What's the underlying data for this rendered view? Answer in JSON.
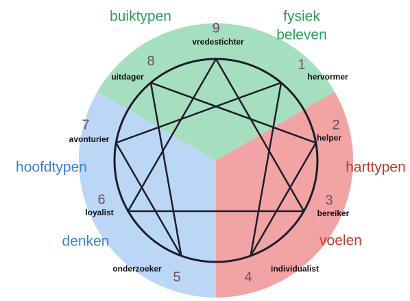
{
  "corners": {
    "top_left": "buiktypen",
    "top_right": [
      "fysiek",
      "beleven"
    ],
    "left": [
      "hoofdtypen",
      "denken"
    ],
    "right": [
      "harttypen",
      "voelen"
    ]
  },
  "nodes": [
    {
      "number": "9",
      "name": "vredestichter"
    },
    {
      "number": "8",
      "name": "uitdager"
    },
    {
      "number": "1",
      "name": "hervormer"
    },
    {
      "number": "7",
      "name": "avonturier"
    },
    {
      "number": "2",
      "name": "helper"
    },
    {
      "number": "6",
      "name": "loyalist"
    },
    {
      "number": "3",
      "name": "bereiker"
    },
    {
      "number": "5",
      "name": "onderzoeker"
    },
    {
      "number": "4",
      "name": "individualist"
    }
  ]
}
